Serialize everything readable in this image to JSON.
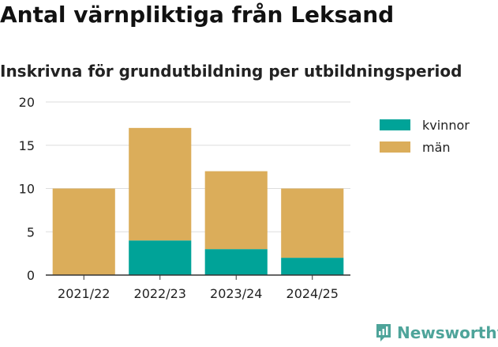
{
  "chart_data": {
    "type": "bar",
    "stacked": true,
    "title": "Antal värnpliktiga från Leksand",
    "subtitle": "Inskrivna för grundutbildning per utbildningsperiod",
    "categories": [
      "2021/22",
      "2022/23",
      "2023/24",
      "2024/25"
    ],
    "series": [
      {
        "name": "kvinnor",
        "values": [
          0,
          4,
          3,
          2
        ],
        "color": "#00a398"
      },
      {
        "name": "män",
        "values": [
          10,
          13,
          9,
          8
        ],
        "color": "#dbad5a"
      }
    ],
    "ylim": [
      0,
      20
    ],
    "yticks": [
      0,
      5,
      10,
      15,
      20
    ],
    "xlabel": "",
    "ylabel": "",
    "grid": true,
    "legend_position": "right"
  },
  "branding": {
    "logo_text": "Newsworthy",
    "logo_icon": "newsworthy-logo-icon",
    "logo_color": "#4ea49a"
  },
  "colors": {
    "grid": "#dddddd",
    "axis": "#333333",
    "text": "#222222"
  }
}
